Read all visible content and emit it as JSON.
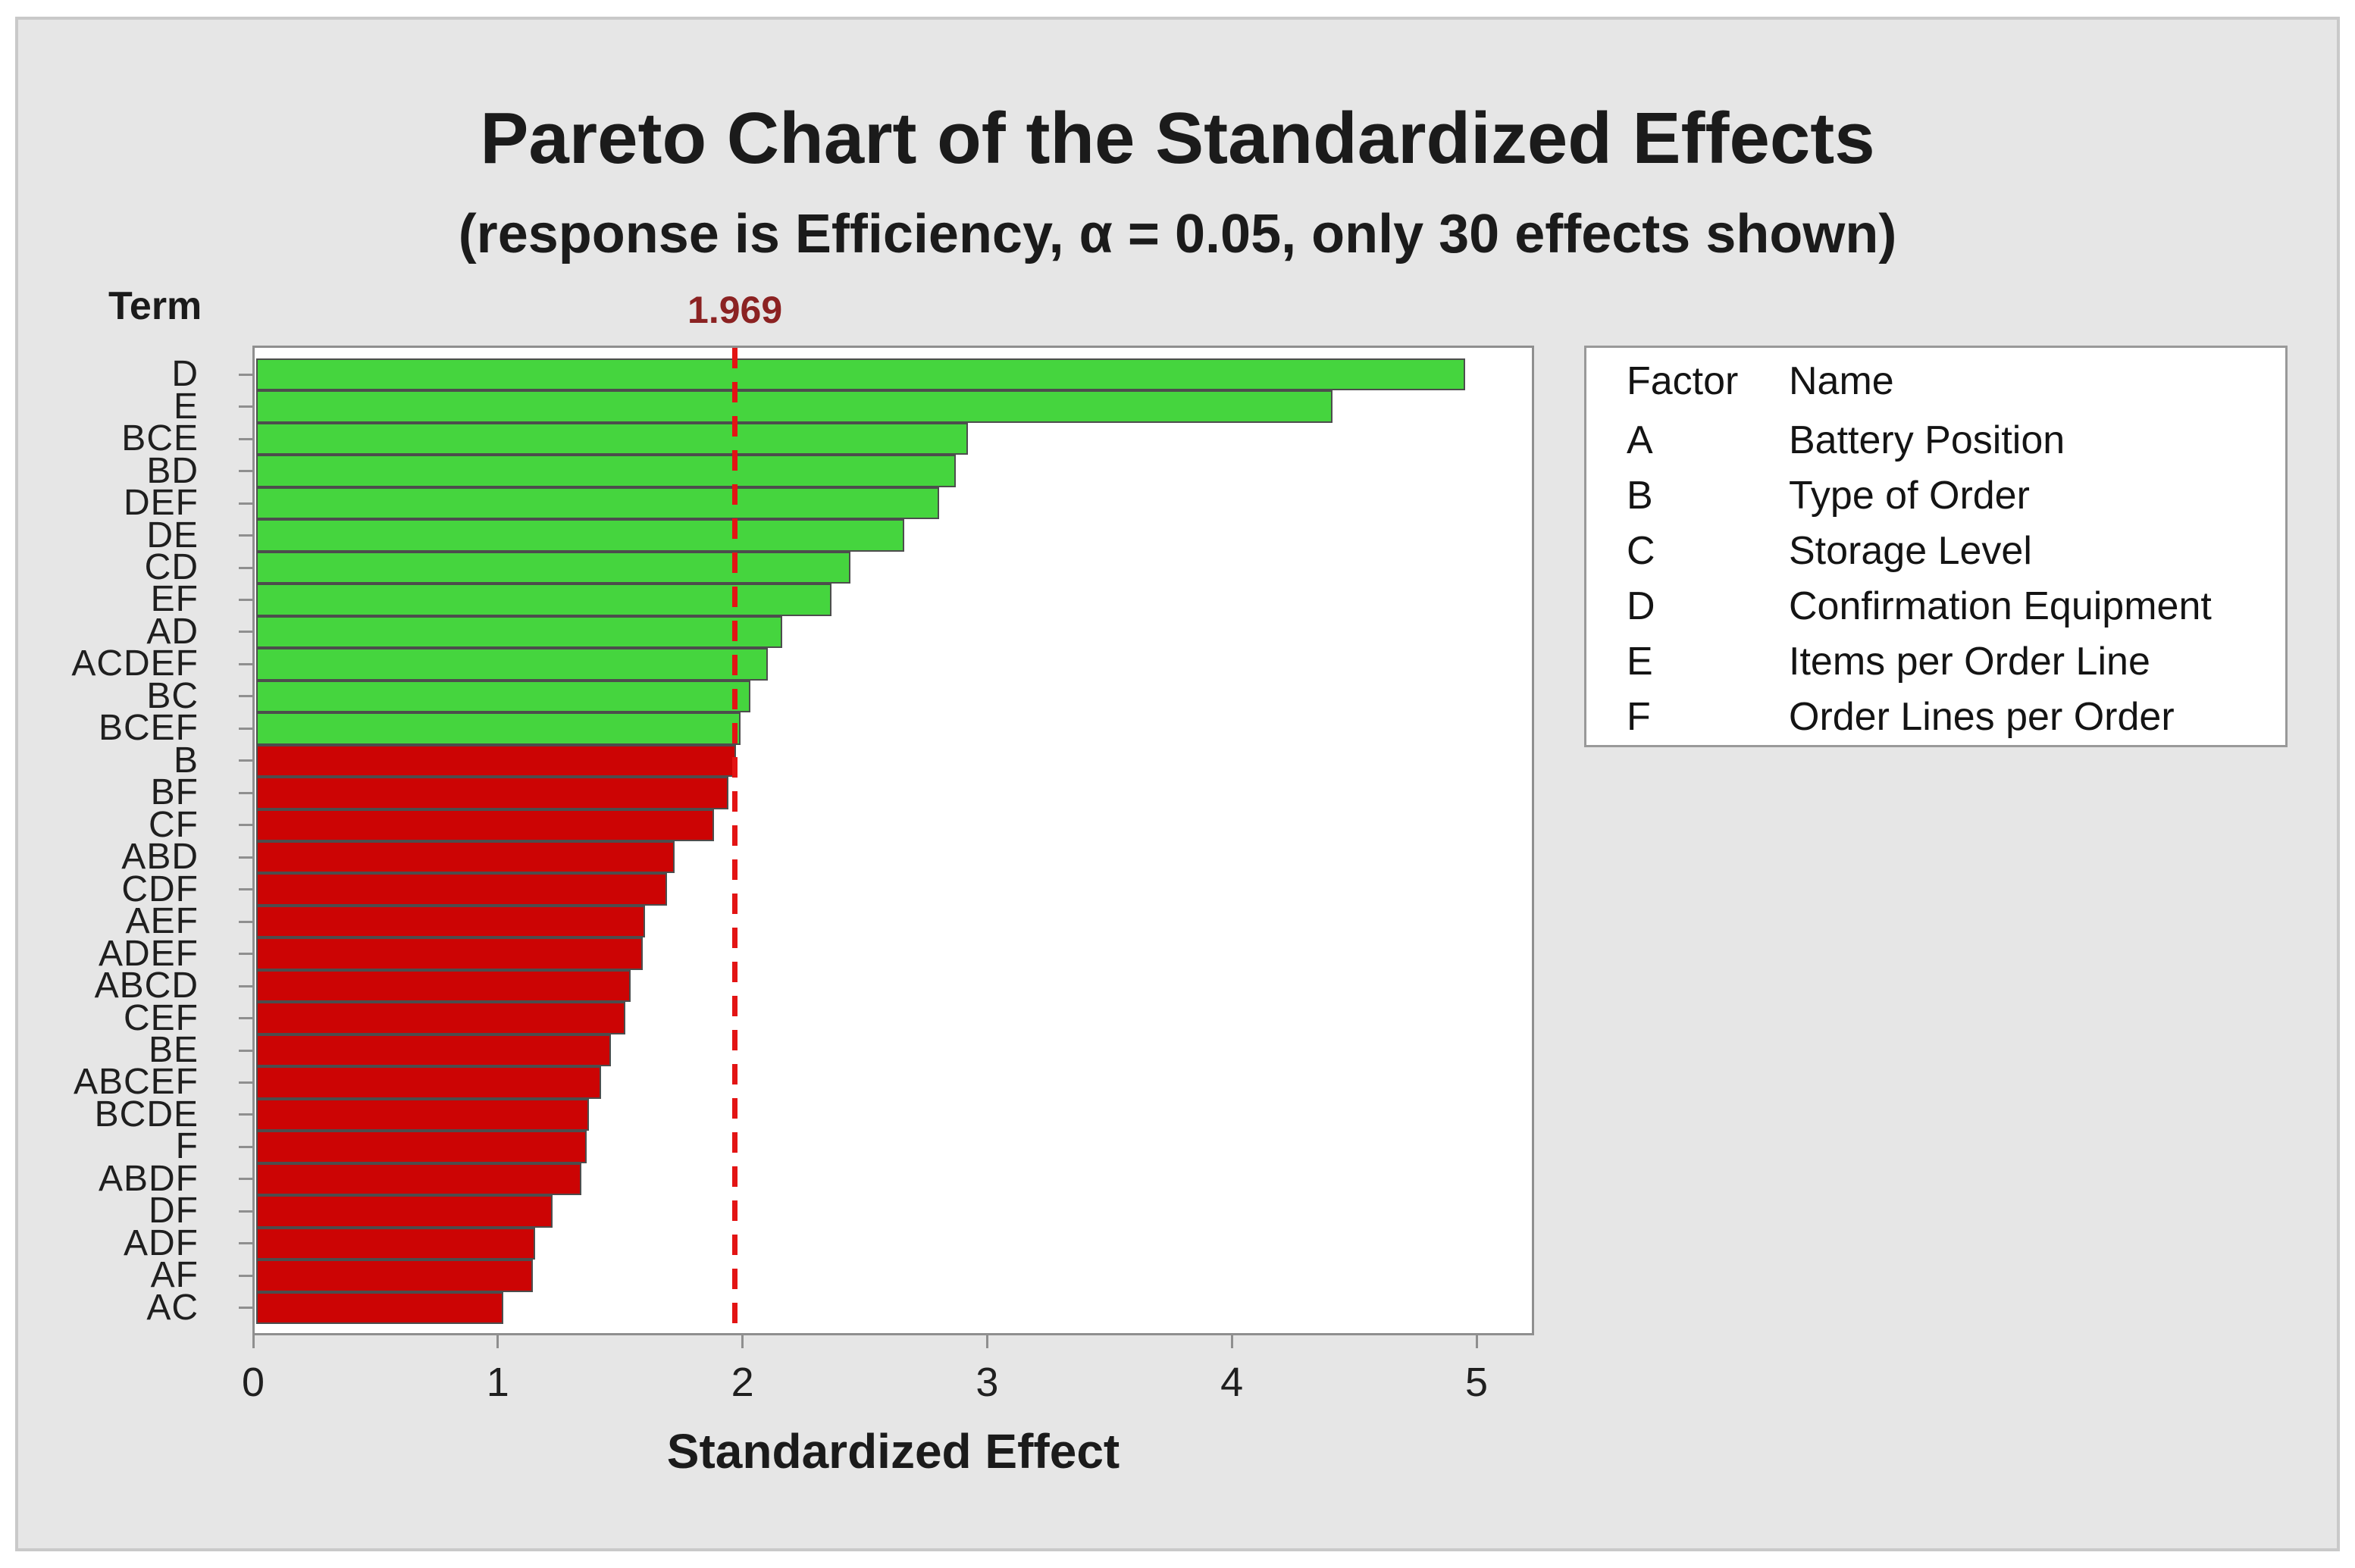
{
  "chart": {
    "title": "Pareto Chart of the Standardized Effects",
    "subtitle": "(response is Efficiency, α = 0.05, only 30 effects shown)",
    "response": "Efficiency",
    "alpha": "0.05",
    "effects_shown": "30",
    "y_axis_header": "Term",
    "x_axis_title": "Standardized Effect"
  },
  "chart_data": {
    "type": "bar",
    "orientation": "horizontal",
    "title": "Pareto Chart of the Standardized Effects",
    "xlabel": "Standardized Effect",
    "ylabel": "Term",
    "categories": [
      "D",
      "E",
      "BCE",
      "BD",
      "DEF",
      "DE",
      "CD",
      "EF",
      "AD",
      "ACDEF",
      "BC",
      "BCEF",
      "B",
      "BF",
      "CF",
      "ABD",
      "CDF",
      "AEF",
      "ADEF",
      "ABCD",
      "CEF",
      "BE",
      "ABCEF",
      "BCDE",
      "F",
      "ABDF",
      "DF",
      "ADF",
      "AF",
      "AC"
    ],
    "values": [
      4.94,
      4.4,
      2.91,
      2.86,
      2.79,
      2.65,
      2.43,
      2.35,
      2.15,
      2.09,
      2.02,
      1.98,
      1.96,
      1.93,
      1.87,
      1.71,
      1.68,
      1.59,
      1.58,
      1.53,
      1.51,
      1.45,
      1.41,
      1.36,
      1.35,
      1.33,
      1.21,
      1.14,
      1.13,
      1.01
    ],
    "x_ticks": [
      "0",
      "1",
      "2",
      "3",
      "4",
      "5"
    ],
    "xlim": [
      0,
      5.24
    ],
    "grid": false,
    "reference_line": {
      "value": 1.969,
      "label": "1.969"
    },
    "colors": {
      "significant_bar": "#45d53e",
      "not_significant_bar": "#cc0404",
      "bar_border": "#4d4d4d",
      "reference_line": "#e31414",
      "reference_label": "#8b2222"
    },
    "legend_position": "right"
  },
  "legend": {
    "col_headers": [
      "Factor",
      "Name"
    ],
    "rows": [
      {
        "factor": "A",
        "name": "Battery Position"
      },
      {
        "factor": "B",
        "name": "Type of Order"
      },
      {
        "factor": "C",
        "name": "Storage Level"
      },
      {
        "factor": "D",
        "name": "Confirmation Equipment"
      },
      {
        "factor": "E",
        "name": "Items per Order Line"
      },
      {
        "factor": "F",
        "name": "Order Lines per Order"
      }
    ]
  }
}
